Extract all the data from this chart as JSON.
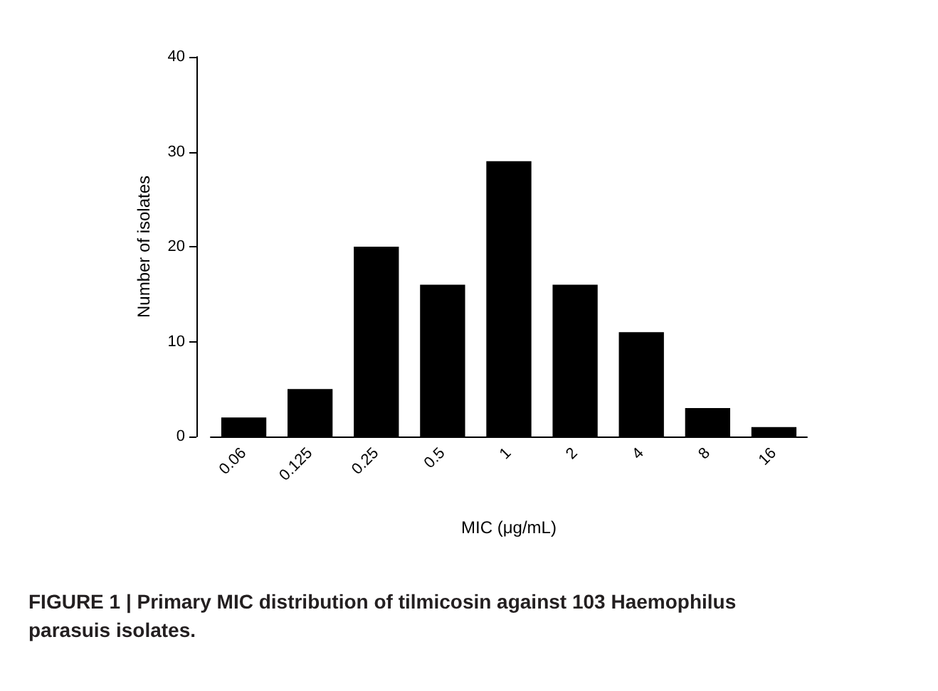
{
  "chart_data": {
    "type": "bar",
    "xlabel": "MIC (μg/mL)",
    "ylabel": "Number of isolates",
    "categories": [
      "0.06",
      "0.125",
      "0.25",
      "0.5",
      "1",
      "2",
      "4",
      "8",
      "16"
    ],
    "values": [
      2,
      5,
      20,
      16,
      29,
      16,
      11,
      3,
      1
    ],
    "color": "#000000",
    "ylim": [
      0,
      40
    ],
    "yticks": [
      0,
      10,
      20,
      30,
      40
    ],
    "grid": false,
    "annotations": [
      "FIGURE 1 | Primary MIC distribution of tilmicosin against 103 Haemophilus parasuis isolates."
    ]
  }
}
